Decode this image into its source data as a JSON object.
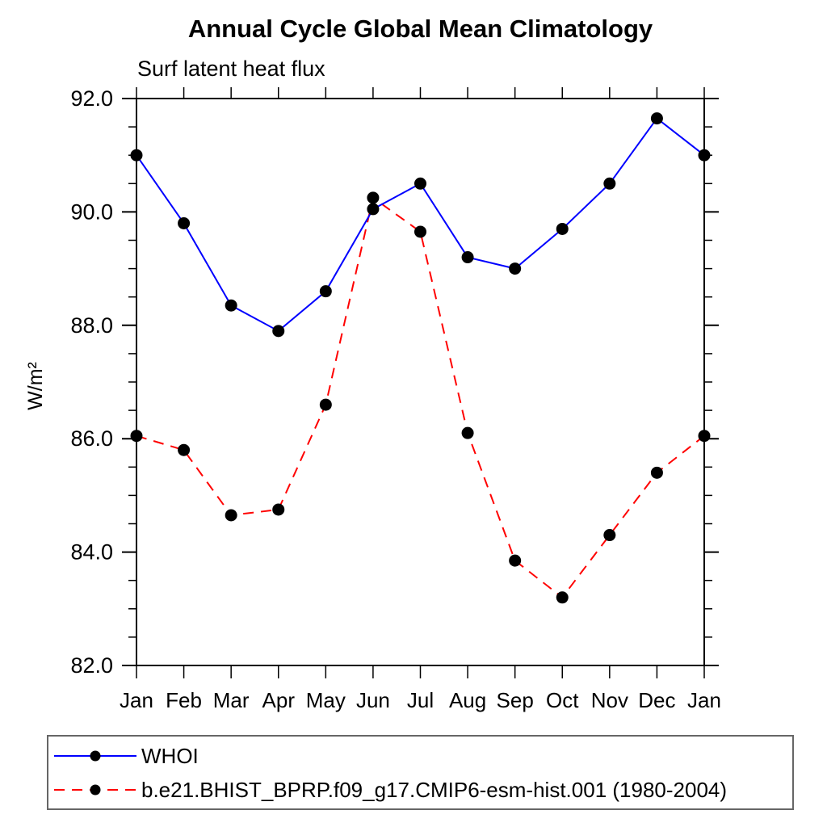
{
  "chart_data": {
    "type": "line",
    "title": "Annual Cycle Global Mean Climatology",
    "subtitle": "Surf latent heat flux",
    "xlabel": "",
    "ylabel": "W/m²",
    "categories": [
      "Jan",
      "Feb",
      "Mar",
      "Apr",
      "May",
      "Jun",
      "Jul",
      "Aug",
      "Sep",
      "Oct",
      "Nov",
      "Dec",
      "Jan"
    ],
    "ylim": [
      82.0,
      92.0
    ],
    "ytick_major_step": 2.0,
    "ytick_minor_step": 0.5,
    "ytick_labels": [
      "82.0",
      "84.0",
      "86.0",
      "88.0",
      "90.0",
      "92.0"
    ],
    "grid": false,
    "legend_position": "bottom-left",
    "axis_color": "#000000",
    "marker_radius": 7.5,
    "series": [
      {
        "name": "WHOI",
        "color": "#0000ff",
        "line_style": "solid",
        "marker": "filled-circle",
        "marker_color": "#000000",
        "values": [
          91.0,
          89.8,
          88.35,
          87.9,
          88.6,
          90.05,
          90.5,
          89.2,
          89.0,
          89.7,
          90.5,
          91.65,
          91.0
        ]
      },
      {
        "name": "b.e21.BHIST_BPRP.f09_g17.CMIP6-esm-hist.001 (1980-2004)",
        "color": "#ff0000",
        "line_style": "dashed",
        "marker": "filled-circle",
        "marker_color": "#000000",
        "values": [
          86.05,
          85.8,
          84.65,
          84.75,
          86.6,
          90.25,
          89.65,
          86.1,
          83.85,
          83.2,
          84.3,
          85.4,
          86.05
        ]
      }
    ]
  }
}
